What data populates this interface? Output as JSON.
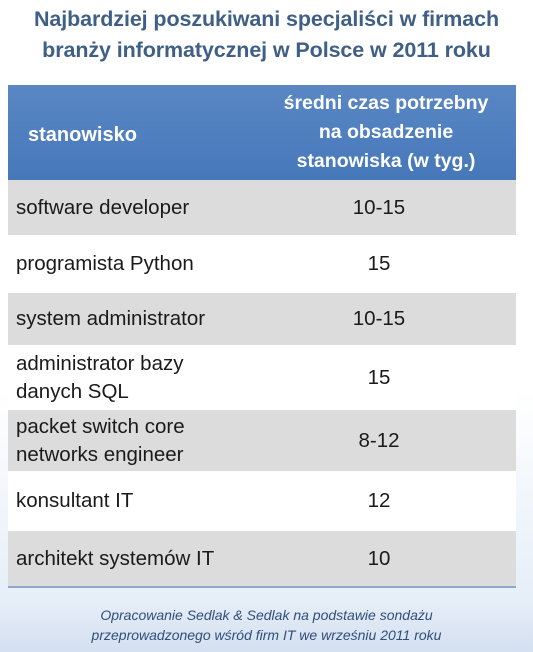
{
  "title": {
    "line1": "Najbardziej poszukiwani specjaliści w firmach",
    "line2": "branży informatycznej w Polsce w 2011 roku"
  },
  "table": {
    "header": {
      "col1": "stanowisko",
      "col2_line1": "średni czas potrzebny",
      "col2_line2": "na obsadzenie",
      "col2_line3": "stanowiska (w tyg.)"
    },
    "rows": [
      {
        "name_line1": "software developer",
        "name_line2": "",
        "time": "10-15"
      },
      {
        "name_line1": "programista Python",
        "name_line2": "",
        "time": "15"
      },
      {
        "name_line1": "system administrator",
        "name_line2": "",
        "time": "10-15"
      },
      {
        "name_line1": "administrator bazy",
        "name_line2": "danych SQL",
        "time": "15"
      },
      {
        "name_line1": "packet switch core",
        "name_line2": "networks engineer",
        "time": "8-12"
      },
      {
        "name_line1": "konsultant IT",
        "name_line2": "",
        "time": "12"
      },
      {
        "name_line1": "architekt systemów IT",
        "name_line2": "",
        "time": "10"
      }
    ]
  },
  "footer": {
    "line1": "Opracowanie Sedlak & Sedlak na podstawie sondażu",
    "line2": "przeprowadzonego wśród firm IT we wrześniu 2011 roku"
  },
  "colors": {
    "title": "#3f5f86",
    "header_bg": "#4f7fbf",
    "row_shaded": "#dcdcdc",
    "footer": "#2f4f78"
  }
}
